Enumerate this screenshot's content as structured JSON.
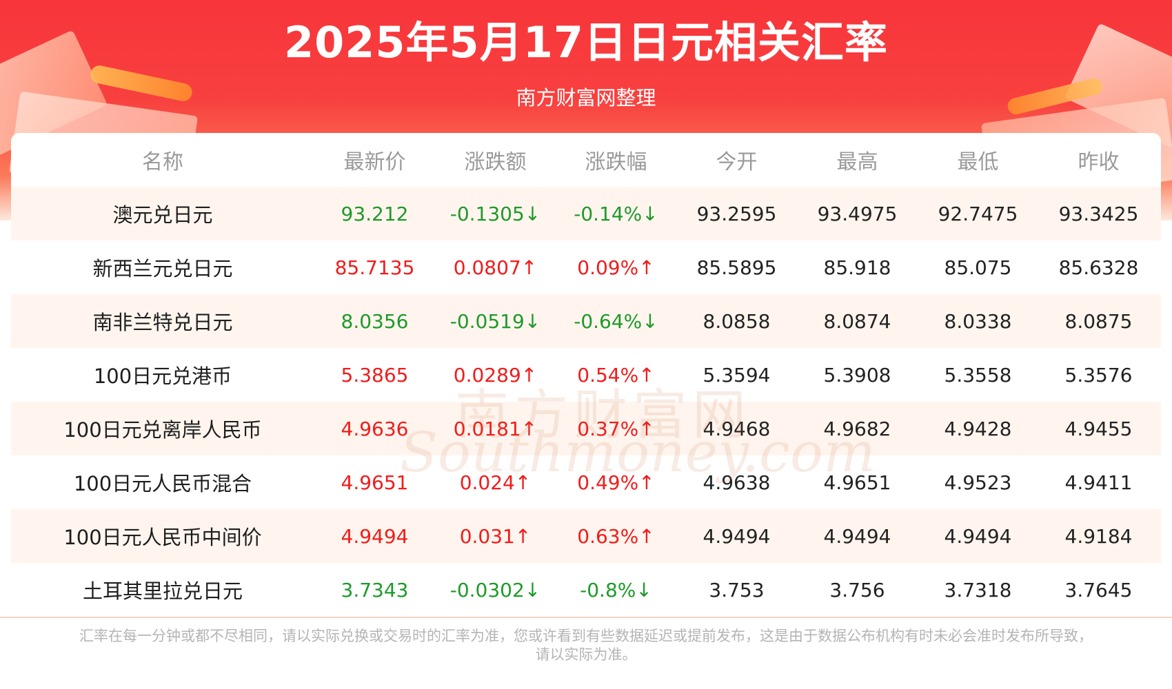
{
  "header": {
    "title": "2025年5月17日日元相关汇率",
    "subtitle": "南方财富网整理"
  },
  "table": {
    "columns": [
      "名称",
      "最新价",
      "涨跌额",
      "涨跌幅",
      "今开",
      "最高",
      "最低",
      "昨收"
    ],
    "rows": [
      {
        "name": "澳元兑日元",
        "latest": "93.212",
        "change": "-0.1305↓",
        "pct": "-0.14%↓",
        "open": "93.2595",
        "high": "93.4975",
        "low": "92.7475",
        "prev": "93.3425",
        "trend": "down"
      },
      {
        "name": "新西兰元兑日元",
        "latest": "85.7135",
        "change": "0.0807↑",
        "pct": "0.09%↑",
        "open": "85.5895",
        "high": "85.918",
        "low": "85.075",
        "prev": "85.6328",
        "trend": "up"
      },
      {
        "name": "南非兰特兑日元",
        "latest": "8.0356",
        "change": "-0.0519↓",
        "pct": "-0.64%↓",
        "open": "8.0858",
        "high": "8.0874",
        "low": "8.0338",
        "prev": "8.0875",
        "trend": "down"
      },
      {
        "name": "100日元兑港币",
        "latest": "5.3865",
        "change": "0.0289↑",
        "pct": "0.54%↑",
        "open": "5.3594",
        "high": "5.3908",
        "low": "5.3558",
        "prev": "5.3576",
        "trend": "up"
      },
      {
        "name": "100日元兑离岸人民币",
        "latest": "4.9636",
        "change": "0.0181↑",
        "pct": "0.37%↑",
        "open": "4.9468",
        "high": "4.9682",
        "low": "4.9428",
        "prev": "4.9455",
        "trend": "up"
      },
      {
        "name": "100日元人民币混合",
        "latest": "4.9651",
        "change": "0.024↑",
        "pct": "0.49%↑",
        "open": "4.9638",
        "high": "4.9651",
        "low": "4.9523",
        "prev": "4.9411",
        "trend": "up"
      },
      {
        "name": "100日元人民币中间价",
        "latest": "4.9494",
        "change": "0.031↑",
        "pct": "0.63%↑",
        "open": "4.9494",
        "high": "4.9494",
        "low": "4.9494",
        "prev": "4.9184",
        "trend": "up"
      },
      {
        "name": "土耳其里拉兑日元",
        "latest": "3.7343",
        "change": "-0.0302↓",
        "pct": "-0.8%↓",
        "open": "3.753",
        "high": "3.756",
        "low": "3.7318",
        "prev": "3.7645",
        "trend": "down"
      }
    ]
  },
  "watermark": {
    "cn": "南方财富网",
    "en": "Southmoney.com"
  },
  "footer": {
    "line1": "汇率在每一分钟或都不尽相同，请以实际兑换或交易时的汇率为准，您或许看到有些数据延迟或提前发布，这是由于数据公布机构有时未必会准时发布所导致，",
    "line2": "请以实际为准。"
  },
  "colors": {
    "up": "#f21b1b",
    "down": "#1d9a2a",
    "banner": "#f7353a"
  }
}
